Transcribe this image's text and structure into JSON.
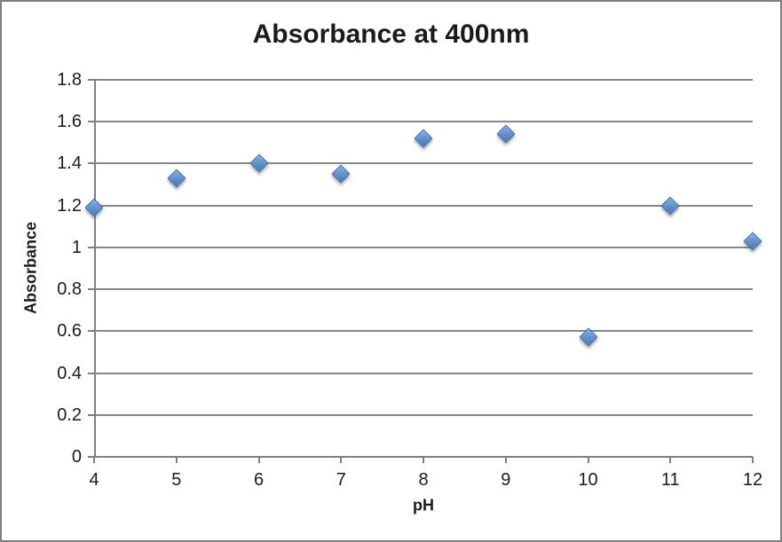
{
  "colors": {
    "background": "#ffffff",
    "frame_border": "#7f7f7f",
    "grid": "#878787",
    "axis": "#808080",
    "text": "#1b1b1b",
    "marker_fill": "#5b8ccb",
    "marker_fill_light": "#8ab1df",
    "marker_border": "#3b69a0"
  },
  "chart_data": {
    "type": "scatter",
    "title": "Absorbance at 400nm",
    "xlabel": "pH",
    "ylabel": "Absorbance",
    "x": [
      4,
      5,
      6,
      7,
      8,
      9,
      10,
      11,
      12
    ],
    "y": [
      1.19,
      1.33,
      1.4,
      1.35,
      1.52,
      1.54,
      0.57,
      1.2,
      1.03
    ],
    "xlim": [
      4,
      12
    ],
    "ylim": [
      0,
      1.8
    ],
    "xticks": [
      4,
      5,
      6,
      7,
      8,
      9,
      10,
      11,
      12
    ],
    "yticks": [
      0,
      0.2,
      0.4,
      0.6,
      0.8,
      1,
      1.2,
      1.4,
      1.6,
      1.8
    ],
    "grid": "horizontal",
    "legend": "none",
    "marker_shape": "diamond"
  }
}
